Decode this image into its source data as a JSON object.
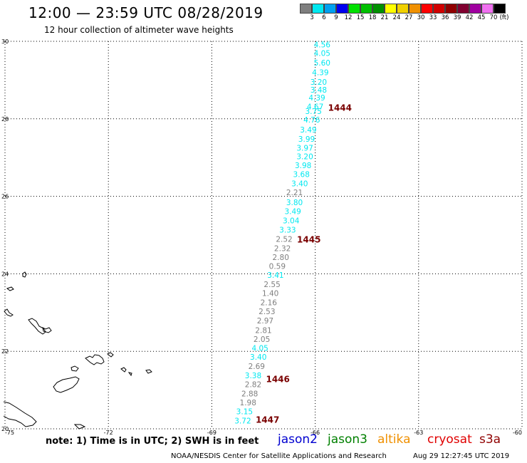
{
  "title": "12:00 — 23:59 UTC 08/28/2019",
  "subtitle": "12 hour collection of altimeter wave heights",
  "legend": {
    "colors": [
      "#7f7f7f",
      "#00e8f0",
      "#00a0f0",
      "#0000f0",
      "#00e000",
      "#00c000",
      "#009000",
      "#ffff00",
      "#f0d000",
      "#f09000",
      "#ff0000",
      "#d00000",
      "#900000",
      "#800030",
      "#a000a0",
      "#f070f0",
      "#000000"
    ],
    "ticks": [
      "3",
      "6",
      "9",
      "12",
      "15",
      "18",
      "21",
      "24",
      "27",
      "30",
      "33",
      "36",
      "39",
      "42",
      "45",
      "70",
      "(ft)"
    ]
  },
  "axes": {
    "lat_labels": [
      "30",
      "28",
      "26",
      "24",
      "22",
      "20"
    ],
    "lon_labels": [
      "-75",
      "-72",
      "-69",
      "-66",
      "-63",
      "-60"
    ]
  },
  "passes": [
    {
      "label": "1444",
      "lat": 28.3
    },
    {
      "label": "1445",
      "lat": 24.9
    },
    {
      "label": "1446",
      "lat": 21.3
    },
    {
      "label": "1447",
      "lat": 20.25
    }
  ],
  "chart_data": {
    "type": "scatter",
    "xlim": [
      -75,
      -60
    ],
    "ylim": [
      20,
      30
    ],
    "points": [
      {
        "lon": -65.8,
        "lat": 29.92,
        "value": "4.56",
        "color": "#00e8f0"
      },
      {
        "lon": -65.8,
        "lat": 29.7,
        "value": "4.05",
        "color": "#00e8f0"
      },
      {
        "lon": -65.8,
        "lat": 29.45,
        "value": "5.60",
        "color": "#00e8f0"
      },
      {
        "lon": -65.85,
        "lat": 29.2,
        "value": "4.39",
        "color": "#00e8f0"
      },
      {
        "lon": -65.9,
        "lat": 28.95,
        "value": "3.20",
        "color": "#00e8f0"
      },
      {
        "lon": -65.9,
        "lat": 28.75,
        "value": "3.48",
        "color": "#00e8f0"
      },
      {
        "lon": -65.95,
        "lat": 28.55,
        "value": "4.39",
        "color": "#00e8f0"
      },
      {
        "lon": -66.0,
        "lat": 28.32,
        "value": "4.67",
        "color": "#00e8f0"
      },
      {
        "lon": -66.05,
        "lat": 28.2,
        "value": "3.75",
        "color": "#00e8f0"
      },
      {
        "lon": -66.1,
        "lat": 27.98,
        "value": "4.76",
        "color": "#00e8f0"
      },
      {
        "lon": -66.2,
        "lat": 27.72,
        "value": "3.49",
        "color": "#00e8f0"
      },
      {
        "lon": -66.25,
        "lat": 27.48,
        "value": "3.99",
        "color": "#00e8f0"
      },
      {
        "lon": -66.3,
        "lat": 27.25,
        "value": "3.97",
        "color": "#00e8f0"
      },
      {
        "lon": -66.3,
        "lat": 27.03,
        "value": "3.20",
        "color": "#00e8f0"
      },
      {
        "lon": -66.35,
        "lat": 26.8,
        "value": "3.98",
        "color": "#00e8f0"
      },
      {
        "lon": -66.4,
        "lat": 26.57,
        "value": "3.68",
        "color": "#00e8f0"
      },
      {
        "lon": -66.45,
        "lat": 26.33,
        "value": "3.40",
        "color": "#00e8f0"
      },
      {
        "lon": -66.6,
        "lat": 26.1,
        "value": "2.21",
        "color": "#7f7f7f"
      },
      {
        "lon": -66.6,
        "lat": 25.85,
        "value": "3.80",
        "color": "#00e8f0"
      },
      {
        "lon": -66.65,
        "lat": 25.62,
        "value": "3.49",
        "color": "#00e8f0"
      },
      {
        "lon": -66.7,
        "lat": 25.38,
        "value": "3.04",
        "color": "#00e8f0"
      },
      {
        "lon": -66.8,
        "lat": 25.14,
        "value": "3.33",
        "color": "#00e8f0"
      },
      {
        "lon": -66.9,
        "lat": 24.9,
        "value": "2.52",
        "color": "#7f7f7f"
      },
      {
        "lon": -66.95,
        "lat": 24.66,
        "value": "2.32",
        "color": "#7f7f7f"
      },
      {
        "lon": -67.0,
        "lat": 24.43,
        "value": "2.80",
        "color": "#7f7f7f"
      },
      {
        "lon": -67.1,
        "lat": 24.2,
        "value": "0.59",
        "color": "#7f7f7f"
      },
      {
        "lon": -67.15,
        "lat": 23.97,
        "value": "3.41",
        "color": "#00e8f0"
      },
      {
        "lon": -67.25,
        "lat": 23.73,
        "value": "2.55",
        "color": "#7f7f7f"
      },
      {
        "lon": -67.3,
        "lat": 23.5,
        "value": "1.40",
        "color": "#7f7f7f"
      },
      {
        "lon": -67.35,
        "lat": 23.26,
        "value": "2.16",
        "color": "#7f7f7f"
      },
      {
        "lon": -67.4,
        "lat": 23.03,
        "value": "2.53",
        "color": "#7f7f7f"
      },
      {
        "lon": -67.45,
        "lat": 22.79,
        "value": "2.97",
        "color": "#7f7f7f"
      },
      {
        "lon": -67.5,
        "lat": 22.55,
        "value": "2.81",
        "color": "#7f7f7f"
      },
      {
        "lon": -67.55,
        "lat": 22.32,
        "value": "2.05",
        "color": "#7f7f7f"
      },
      {
        "lon": -67.6,
        "lat": 22.09,
        "value": "4.05",
        "color": "#00e8f0"
      },
      {
        "lon": -67.65,
        "lat": 21.86,
        "value": "3.40",
        "color": "#00e8f0"
      },
      {
        "lon": -67.7,
        "lat": 21.62,
        "value": "2.69",
        "color": "#7f7f7f"
      },
      {
        "lon": -67.8,
        "lat": 21.38,
        "value": "3.38",
        "color": "#00e8f0"
      },
      {
        "lon": -67.8,
        "lat": 21.15,
        "value": "2.82",
        "color": "#7f7f7f"
      },
      {
        "lon": -67.9,
        "lat": 20.91,
        "value": "2.88",
        "color": "#7f7f7f"
      },
      {
        "lon": -67.95,
        "lat": 20.68,
        "value": "1.98",
        "color": "#7f7f7f"
      },
      {
        "lon": -68.05,
        "lat": 20.45,
        "value": "3.15",
        "color": "#00e8f0"
      },
      {
        "lon": -68.1,
        "lat": 20.21,
        "value": "3.72",
        "color": "#00e8f0"
      }
    ]
  },
  "footer": {
    "note": "note: 1) Time is in UTC; 2) SWH is in feet",
    "satellites": [
      {
        "name": "jason2",
        "color": "#0000d0"
      },
      {
        "name": "jason3",
        "color": "#008000"
      },
      {
        "name": "altika",
        "color": "#f09000"
      },
      {
        "name": "cryosat",
        "color": "#e00000"
      },
      {
        "name": "s3a",
        "color": "#900000"
      }
    ],
    "credit": "NOAA/NESDIS Center for Satellite Applications and Research",
    "timestamp": "Aug 29 12:27:45 UTC 2019"
  }
}
